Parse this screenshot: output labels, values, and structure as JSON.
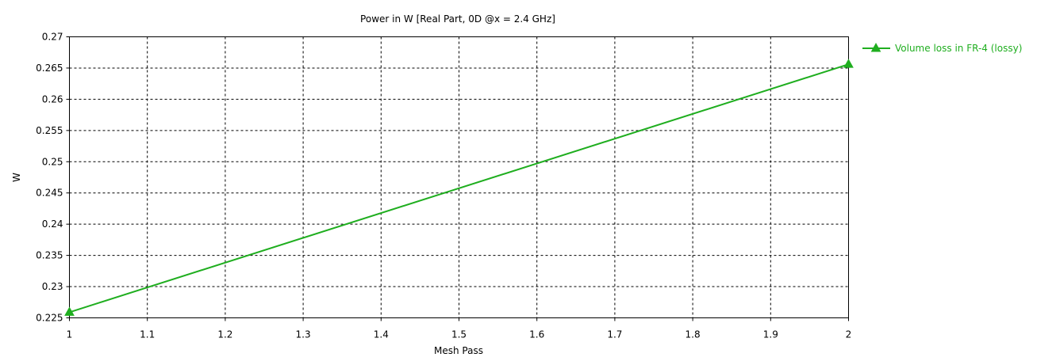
{
  "chart_data": {
    "type": "line",
    "title": "Power in W [Real Part, 0D @x = 2.4 GHz]",
    "xlabel": "Mesh Pass",
    "ylabel": "W",
    "xlim": [
      1,
      2
    ],
    "ylim": [
      0.225,
      0.27
    ],
    "x_ticks": [
      "1",
      "1.1",
      "1.2",
      "1.3",
      "1.4",
      "1.5",
      "1.6",
      "1.7",
      "1.8",
      "1.9",
      "2"
    ],
    "y_ticks": [
      "0.27",
      "0.265",
      "0.26",
      "0.255",
      "0.25",
      "0.245",
      "0.24",
      "0.235",
      "0.23",
      "0.225"
    ],
    "grid": true,
    "legend_position": "top-right",
    "series": [
      {
        "name": "Volume loss in FR-4 (lossy)",
        "color": "#1fae1f",
        "marker": "triangle",
        "x": [
          1,
          2
        ],
        "y": [
          0.2259,
          0.2656
        ]
      }
    ]
  }
}
